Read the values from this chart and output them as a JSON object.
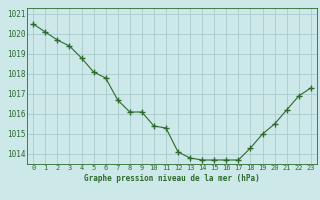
{
  "x": [
    0,
    1,
    2,
    3,
    4,
    5,
    6,
    7,
    8,
    9,
    10,
    11,
    12,
    13,
    14,
    15,
    16,
    17,
    18,
    19,
    20,
    21,
    22,
    23
  ],
  "y": [
    1020.5,
    1020.1,
    1019.7,
    1019.4,
    1018.8,
    1018.1,
    1017.8,
    1016.7,
    1016.1,
    1016.1,
    1015.4,
    1015.3,
    1014.1,
    1013.8,
    1013.7,
    1013.7,
    1013.7,
    1013.7,
    1014.3,
    1015.0,
    1015.5,
    1016.2,
    1016.9,
    1017.3
  ],
  "line_color": "#2d6a2d",
  "marker": "+",
  "bg_color": "#cce8e8",
  "grid_color": "#aacccc",
  "xlabel": "Graphe pression niveau de la mer (hPa)",
  "xlabel_color": "#2d6a2d",
  "tick_color": "#2d6a2d",
  "ylim": [
    1013.5,
    1021.3
  ],
  "xlim": [
    -0.5,
    23.5
  ],
  "yticks": [
    1014,
    1015,
    1016,
    1017,
    1018,
    1019,
    1020,
    1021
  ],
  "xticks": [
    0,
    1,
    2,
    3,
    4,
    5,
    6,
    7,
    8,
    9,
    10,
    11,
    12,
    13,
    14,
    15,
    16,
    17,
    18,
    19,
    20,
    21,
    22,
    23
  ]
}
